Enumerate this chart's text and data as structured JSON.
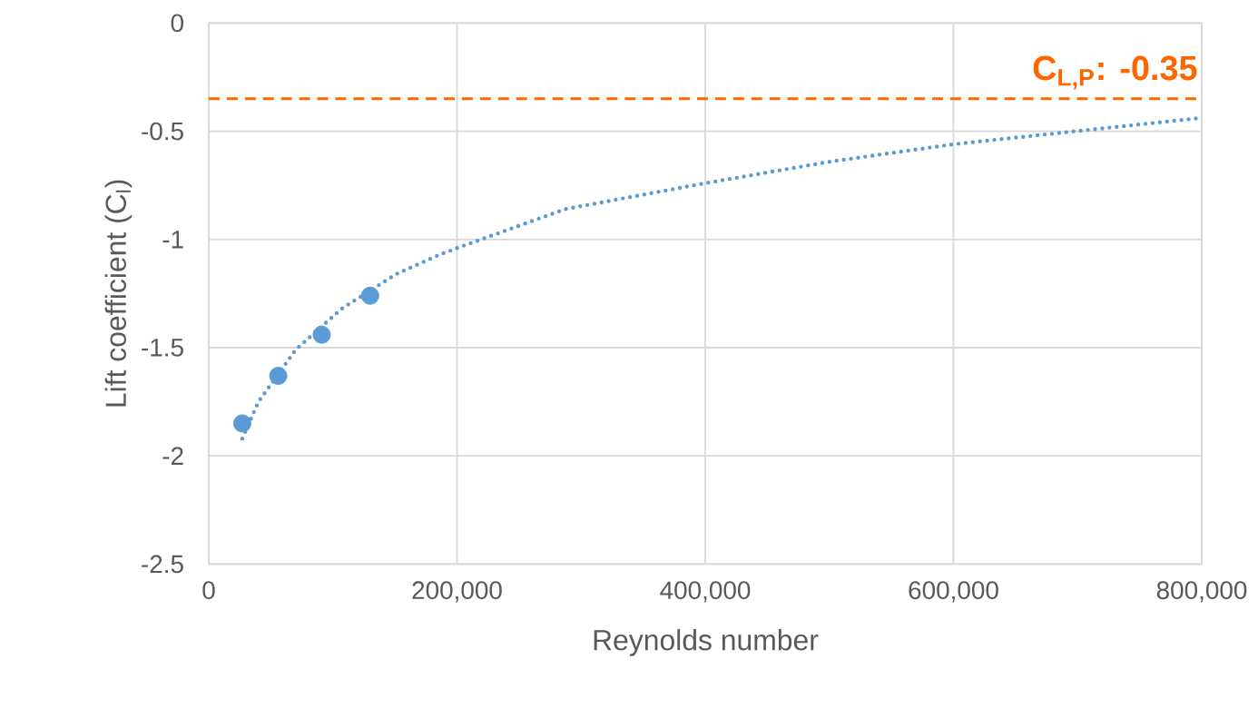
{
  "chart_data": {
    "type": "scatter",
    "xlabel": "Reynolds number",
    "ylabel": "Lift coefficient (C$_{l}$)",
    "xlim": [
      0,
      800000
    ],
    "ylim": [
      -2.5,
      0
    ],
    "xticks": [
      0,
      {
        "value": 200000,
        "label": "200,000"
      },
      {
        "value": 400000,
        "label": "400,000"
      },
      {
        "value": 600000,
        "label": "600,000"
      },
      {
        "value": 800000,
        "label": "800,000"
      }
    ],
    "yticks": [
      -2.5,
      -2,
      -1.5,
      -1,
      -0.5,
      0
    ],
    "grid": true,
    "series": [
      {
        "color": "#5b9bd5",
        "marker": "circle",
        "x": [
          27000,
          56000,
          91000,
          130000
        ],
        "values": [
          -1.85,
          -1.63,
          -1.44,
          -1.26
        ]
      },
      {
        "type": "line",
        "color": "#5b9bd5",
        "marker": "none",
        "line_style": "dotted",
        "x": [
          27000,
          40000,
          70000,
          107000,
          151000,
          186000,
          200000,
          287000,
          400000,
          501000,
          600000,
          698000,
          797000
        ],
        "values": [
          -1.92,
          -1.75,
          -1.51,
          -1.32,
          -1.16,
          -1.07,
          -1.04,
          -0.86,
          -0.74,
          -0.64,
          -0.56,
          -0.5,
          -0.44
        ]
      }
    ],
    "ref_lines": [
      {
        "axis": "y",
        "value": -0.35,
        "label": "C$_{L,P}$: -0.35",
        "color": "#ff6600",
        "line_style": "dashed"
      }
    ]
  }
}
